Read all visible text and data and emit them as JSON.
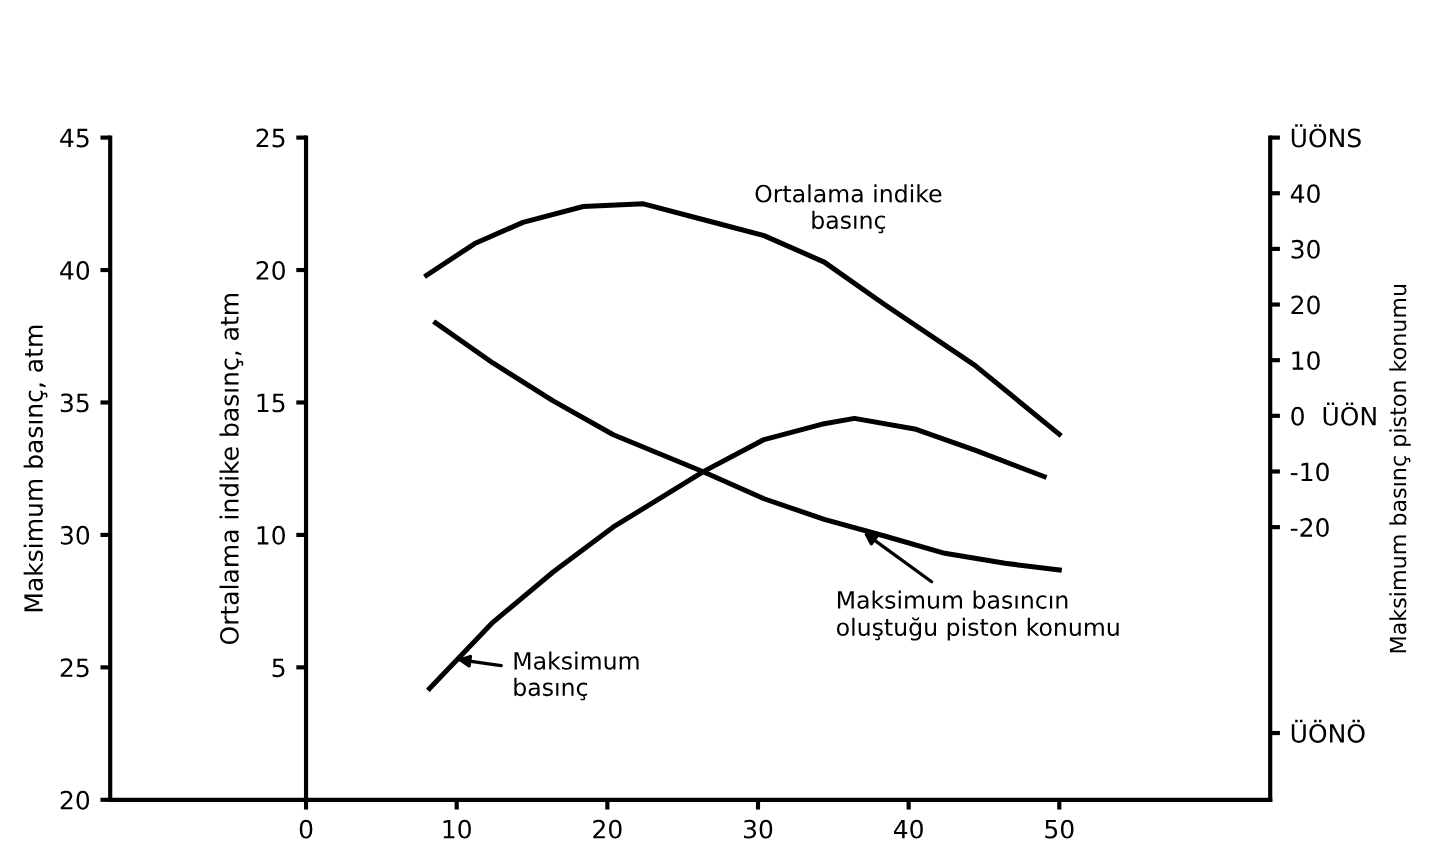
{
  "chart_data": {
    "type": "line",
    "xlim": [
      -13,
      64
    ],
    "xticks": [
      0,
      10,
      20,
      30,
      40,
      50
    ],
    "ylabel": "Maksimum basınç, atm",
    "ylim": [
      20,
      45
    ],
    "yticks": [
      20,
      25,
      30,
      35,
      40,
      45
    ],
    "y2label": "Ortalama indike basınç, atm",
    "y2lim": [
      0,
      25
    ],
    "y2ticks": [
      5,
      10,
      15,
      20,
      25
    ],
    "y3label": "Maksimum basınç piston konumu",
    "y3lim": [
      -69,
      50
    ],
    "y3ticks": [
      {
        "value": 50,
        "label": "ÜÖNS"
      },
      40,
      30,
      20,
      10,
      {
        "value": 0,
        "label": "0  ÜÖN"
      },
      -10,
      -20,
      {
        "value": -57,
        "label": "ÜÖNÖ"
      }
    ],
    "grid": false,
    "marker": "none",
    "line_style": "solid",
    "series": [
      {
        "color": "#000000",
        "axis": "y2",
        "x": [
          8,
          11.2,
          14.4,
          18.4,
          22.4,
          26.4,
          30.4,
          34.4,
          38.4,
          44.4,
          50
        ],
        "values": [
          19.8,
          21.0,
          21.8,
          22.4,
          22.5,
          21.9,
          21.3,
          20.3,
          18.7,
          16.4,
          13.8
        ]
      },
      {
        "color": "#000000",
        "axis": "y",
        "x": [
          8.2,
          12.4,
          16.4,
          20.4,
          26.4,
          30.4,
          34.4,
          36.4,
          40.4,
          44.4,
          49
        ],
        "values": [
          24.2,
          26.7,
          28.6,
          30.3,
          32.4,
          33.6,
          34.2,
          34.4,
          34.0,
          33.2,
          32.2
        ]
      },
      {
        "color": "#000000",
        "axis": "y3",
        "x": [
          8.6,
          12.4,
          16.4,
          20.4,
          26.4,
          30.4,
          34.4,
          38.4,
          42.4,
          46.4,
          50
        ],
        "values": [
          16.7,
          9.5,
          2.7,
          -3.4,
          -10.1,
          -14.9,
          -18.6,
          -21.6,
          -24.7,
          -26.5,
          -27.7
        ]
      }
    ],
    "annotations": [
      {
        "text": "Ortalama indike\nbasınç",
        "x": 36,
        "y": 40
      },
      {
        "text": "Maksimum\nbasınç",
        "x": 10,
        "y": 25.3
      },
      {
        "text": "Maksimum basıncın\noluştuğu piston konumu",
        "x": 37,
        "y": 30.1
      }
    ]
  }
}
